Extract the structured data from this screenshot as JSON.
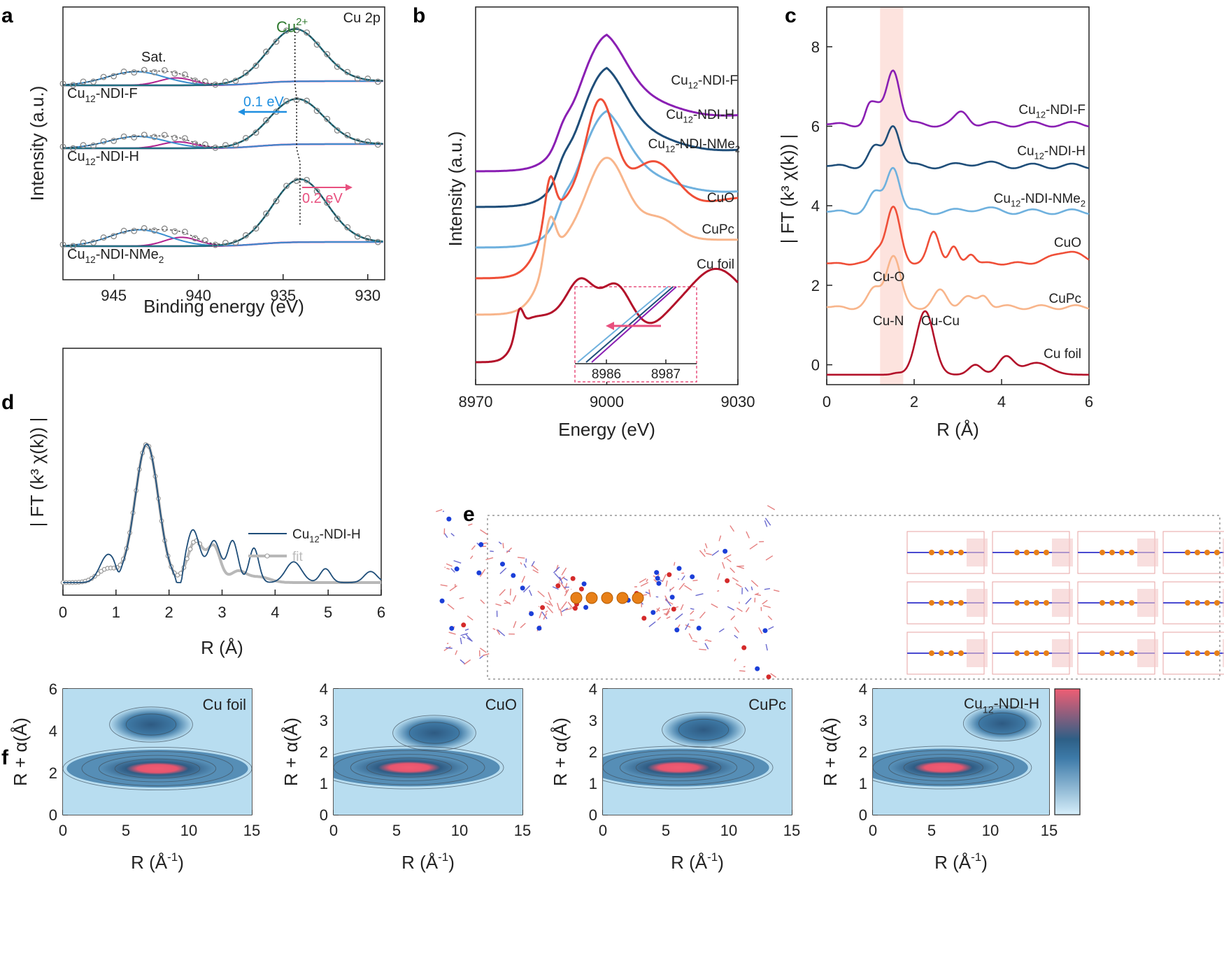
{
  "colors": {
    "violet": "#8a1fb3",
    "navy": "#1f4e79",
    "lightblue": "#6fb1de",
    "red": "#ef4f38",
    "peach": "#f8b58b",
    "darkred": "#b3122a",
    "teal": "#1f6f80",
    "magenta": "#b0228f",
    "fitblue": "#3b8fcf",
    "pinkarrow": "#e8507f",
    "arrowblue": "#1f8fe0",
    "cu2green": "#2f7a2f",
    "highlight": "#fde3de",
    "fitgray": "#b8b8b8",
    "mapLow": "#b8ddf0",
    "mapMid": "#3d7aa8",
    "mapHigh": "#ef5e74"
  },
  "chart_data": [
    {
      "panel": "a",
      "type": "line",
      "title": "Cu 2p",
      "xlabel": "Binding energy (eV)",
      "ylabel": "Intensity (a.u.)",
      "xlim": [
        948,
        929
      ],
      "xticks": [
        "945",
        "940",
        "935",
        "930"
      ],
      "xtick_values": [
        945,
        940,
        935,
        930
      ],
      "annotations": {
        "peak": "Cu",
        "peak_sup": "2+",
        "sat": "Sat.",
        "shift1": "0.1 eV",
        "shift2": "0.2 eV"
      },
      "series": [
        {
          "name": "Cu",
          "sub": "12",
          "suffix": "-NDI-F",
          "main_center": 934.3,
          "sat1_center": 943.7,
          "sat2_center": 941.3
        },
        {
          "name": "Cu",
          "sub": "12",
          "suffix": "-NDI-H",
          "main_center": 934.2,
          "sat1_center": 943.6,
          "sat2_center": 941.2
        },
        {
          "name": "Cu",
          "sub": "12",
          "suffix": "-NDI-NMe",
          "sub2": "2",
          "main_center": 934.0,
          "sat1_center": 943.5,
          "sat2_center": 941.0
        }
      ]
    },
    {
      "panel": "b",
      "type": "line",
      "xlabel": "Energy (eV)",
      "ylabel": "Intensity (a.u.)",
      "xlim": [
        8970,
        9030
      ],
      "xticks": [
        "8970",
        "9000",
        "9030"
      ],
      "xtick_values": [
        8970,
        9000,
        9030
      ],
      "series": [
        {
          "name": "Cu",
          "sub": "12",
          "suffix": "-NDI-F"
        },
        {
          "name": "Cu",
          "sub": "12",
          "suffix": "-NDI-H"
        },
        {
          "name": "Cu",
          "sub": "12",
          "suffix": "-NDI-NMe",
          "sub2": "2"
        },
        {
          "name": "CuO"
        },
        {
          "name": "CuPc"
        },
        {
          "name": "Cu foil"
        }
      ],
      "inset": {
        "xticks": [
          "8986",
          "8987"
        ],
        "xtick_values": [
          8986,
          8987
        ]
      }
    },
    {
      "panel": "c",
      "type": "line",
      "xlabel": "R (Å)",
      "ylabel": "| FT (k³ χ(k)) |",
      "xlim": [
        0,
        6
      ],
      "ylim": [
        -0.5,
        9
      ],
      "xticks": [
        "0",
        "2",
        "4",
        "6"
      ],
      "xtick_values": [
        0,
        2,
        4,
        6
      ],
      "yticks": [
        "0",
        "2",
        "4",
        "6",
        "8"
      ],
      "ytick_values": [
        0,
        2,
        4,
        6,
        8
      ],
      "offsets": [
        6.05,
        5.0,
        3.85,
        2.55,
        1.45,
        -0.25
      ],
      "peak_heights": [
        1.4,
        1.05,
        1.15,
        1.4,
        1.3,
        1.6
      ],
      "series": [
        {
          "name": "Cu",
          "sub": "12",
          "suffix": "-NDI-F"
        },
        {
          "name": "Cu",
          "sub": "12",
          "suffix": "-NDI-H"
        },
        {
          "name": "Cu",
          "sub": "12",
          "suffix": "-NDI-NMe",
          "sub2": "2"
        },
        {
          "name": "CuO"
        },
        {
          "name": "CuPc"
        },
        {
          "name": "Cu foil"
        }
      ],
      "annotations": [
        "Cu-O",
        "Cu-N",
        "Cu-Cu"
      ]
    },
    {
      "panel": "d",
      "type": "line",
      "xlabel": "R (Å)",
      "ylabel": "| FT (k³ χ(k)) |",
      "xlim": [
        0,
        6
      ],
      "xticks": [
        "0",
        "1",
        "2",
        "3",
        "4",
        "5",
        "6"
      ],
      "xtick_values": [
        0,
        1,
        2,
        3,
        4,
        5,
        6
      ],
      "legend": [
        {
          "name": "Cu",
          "sub": "12",
          "suffix": "-NDI-H"
        },
        {
          "name": "fit"
        }
      ]
    },
    {
      "panel": "f",
      "type": "heatmap",
      "xlabel": "R (Å",
      "xlabel_sup": "-1",
      "xlabel_end": ")",
      "ylabel": "R + α(Å)",
      "maps": [
        {
          "label": "Cu foil",
          "ylim": [
            0,
            6
          ],
          "yticks": [
            "0",
            "2",
            "4",
            "6"
          ],
          "ytick_values": [
            0,
            2,
            4,
            6
          ],
          "xticks": [
            "0",
            "5",
            "10",
            "15"
          ],
          "xtick_values": [
            0,
            5,
            10,
            15
          ],
          "peak_k": 7.5,
          "peak_r": 2.2,
          "second_k": 7,
          "second_r": 4.3
        },
        {
          "label": "CuO",
          "ylim": [
            0,
            4
          ],
          "yticks": [
            "0",
            "1",
            "2",
            "3",
            "4"
          ],
          "ytick_values": [
            0,
            1,
            2,
            3,
            4
          ],
          "xticks": [
            "0",
            "5",
            "10",
            "15"
          ],
          "xtick_values": [
            0,
            5,
            10,
            15
          ],
          "peak_k": 6,
          "peak_r": 1.5,
          "second_k": 8,
          "second_r": 2.6
        },
        {
          "label": "CuPc",
          "ylim": [
            0,
            4
          ],
          "yticks": [
            "0",
            "1",
            "2",
            "3",
            "4"
          ],
          "ytick_values": [
            0,
            1,
            2,
            3,
            4
          ],
          "xticks": [
            "0",
            "5",
            "10",
            "15"
          ],
          "xtick_values": [
            0,
            5,
            10,
            15
          ],
          "peak_k": 6,
          "peak_r": 1.5,
          "second_k": 8,
          "second_r": 2.7
        },
        {
          "label": "Cu",
          "label_sub": "12",
          "label_suffix": "-NDI-H",
          "ylim": [
            0,
            4
          ],
          "yticks": [
            "0",
            "1",
            "2",
            "3",
            "4"
          ],
          "ytick_values": [
            0,
            1,
            2,
            3,
            4
          ],
          "xticks": [
            "0",
            "5",
            "10",
            "15"
          ],
          "xtick_values": [
            0,
            5,
            10,
            15
          ],
          "peak_k": 6,
          "peak_r": 1.5,
          "second_k": 11,
          "second_r": 2.9
        }
      ]
    }
  ],
  "panel_letters": [
    "a",
    "b",
    "c",
    "d",
    "e",
    "f"
  ]
}
